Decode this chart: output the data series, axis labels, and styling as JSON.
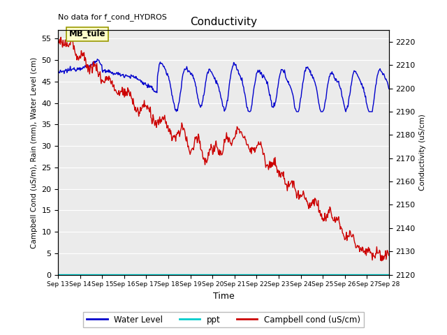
{
  "title": "Conductivity",
  "top_left_text": "No data for f_cond_HYDROS",
  "annotation_label": "MB_tule",
  "xlabel": "Time",
  "ylabel_left": "Campbell Cond (uS/m), Rain (mm), Water Level (cm)",
  "ylabel_right": "Conductivity (uS/cm)",
  "ylim_left": [
    0,
    57
  ],
  "ylim_right": [
    2120,
    2225
  ],
  "yticks_left": [
    0,
    5,
    10,
    15,
    20,
    25,
    30,
    35,
    40,
    45,
    50,
    55
  ],
  "yticks_right": [
    2120,
    2130,
    2140,
    2150,
    2160,
    2170,
    2180,
    2190,
    2200,
    2210,
    2220
  ],
  "xtick_labels": [
    "Sep 13",
    "Sep 14",
    "Sep 15",
    "Sep 16",
    "Sep 17",
    "Sep 18",
    "Sep 19",
    "Sep 20",
    "Sep 21",
    "Sep 22",
    "Sep 23",
    "Sep 24",
    "Sep 25",
    "Sep 26",
    "Sep 27",
    "Sep 28"
  ],
  "plot_bg_color": "#ebebeb",
  "grid_color": "#ffffff",
  "legend_colors": [
    "#0000cc",
    "#00cccc",
    "#cc0000"
  ],
  "legend_labels": [
    "Water Level",
    "ppt",
    "Campbell cond (uS/cm)"
  ]
}
